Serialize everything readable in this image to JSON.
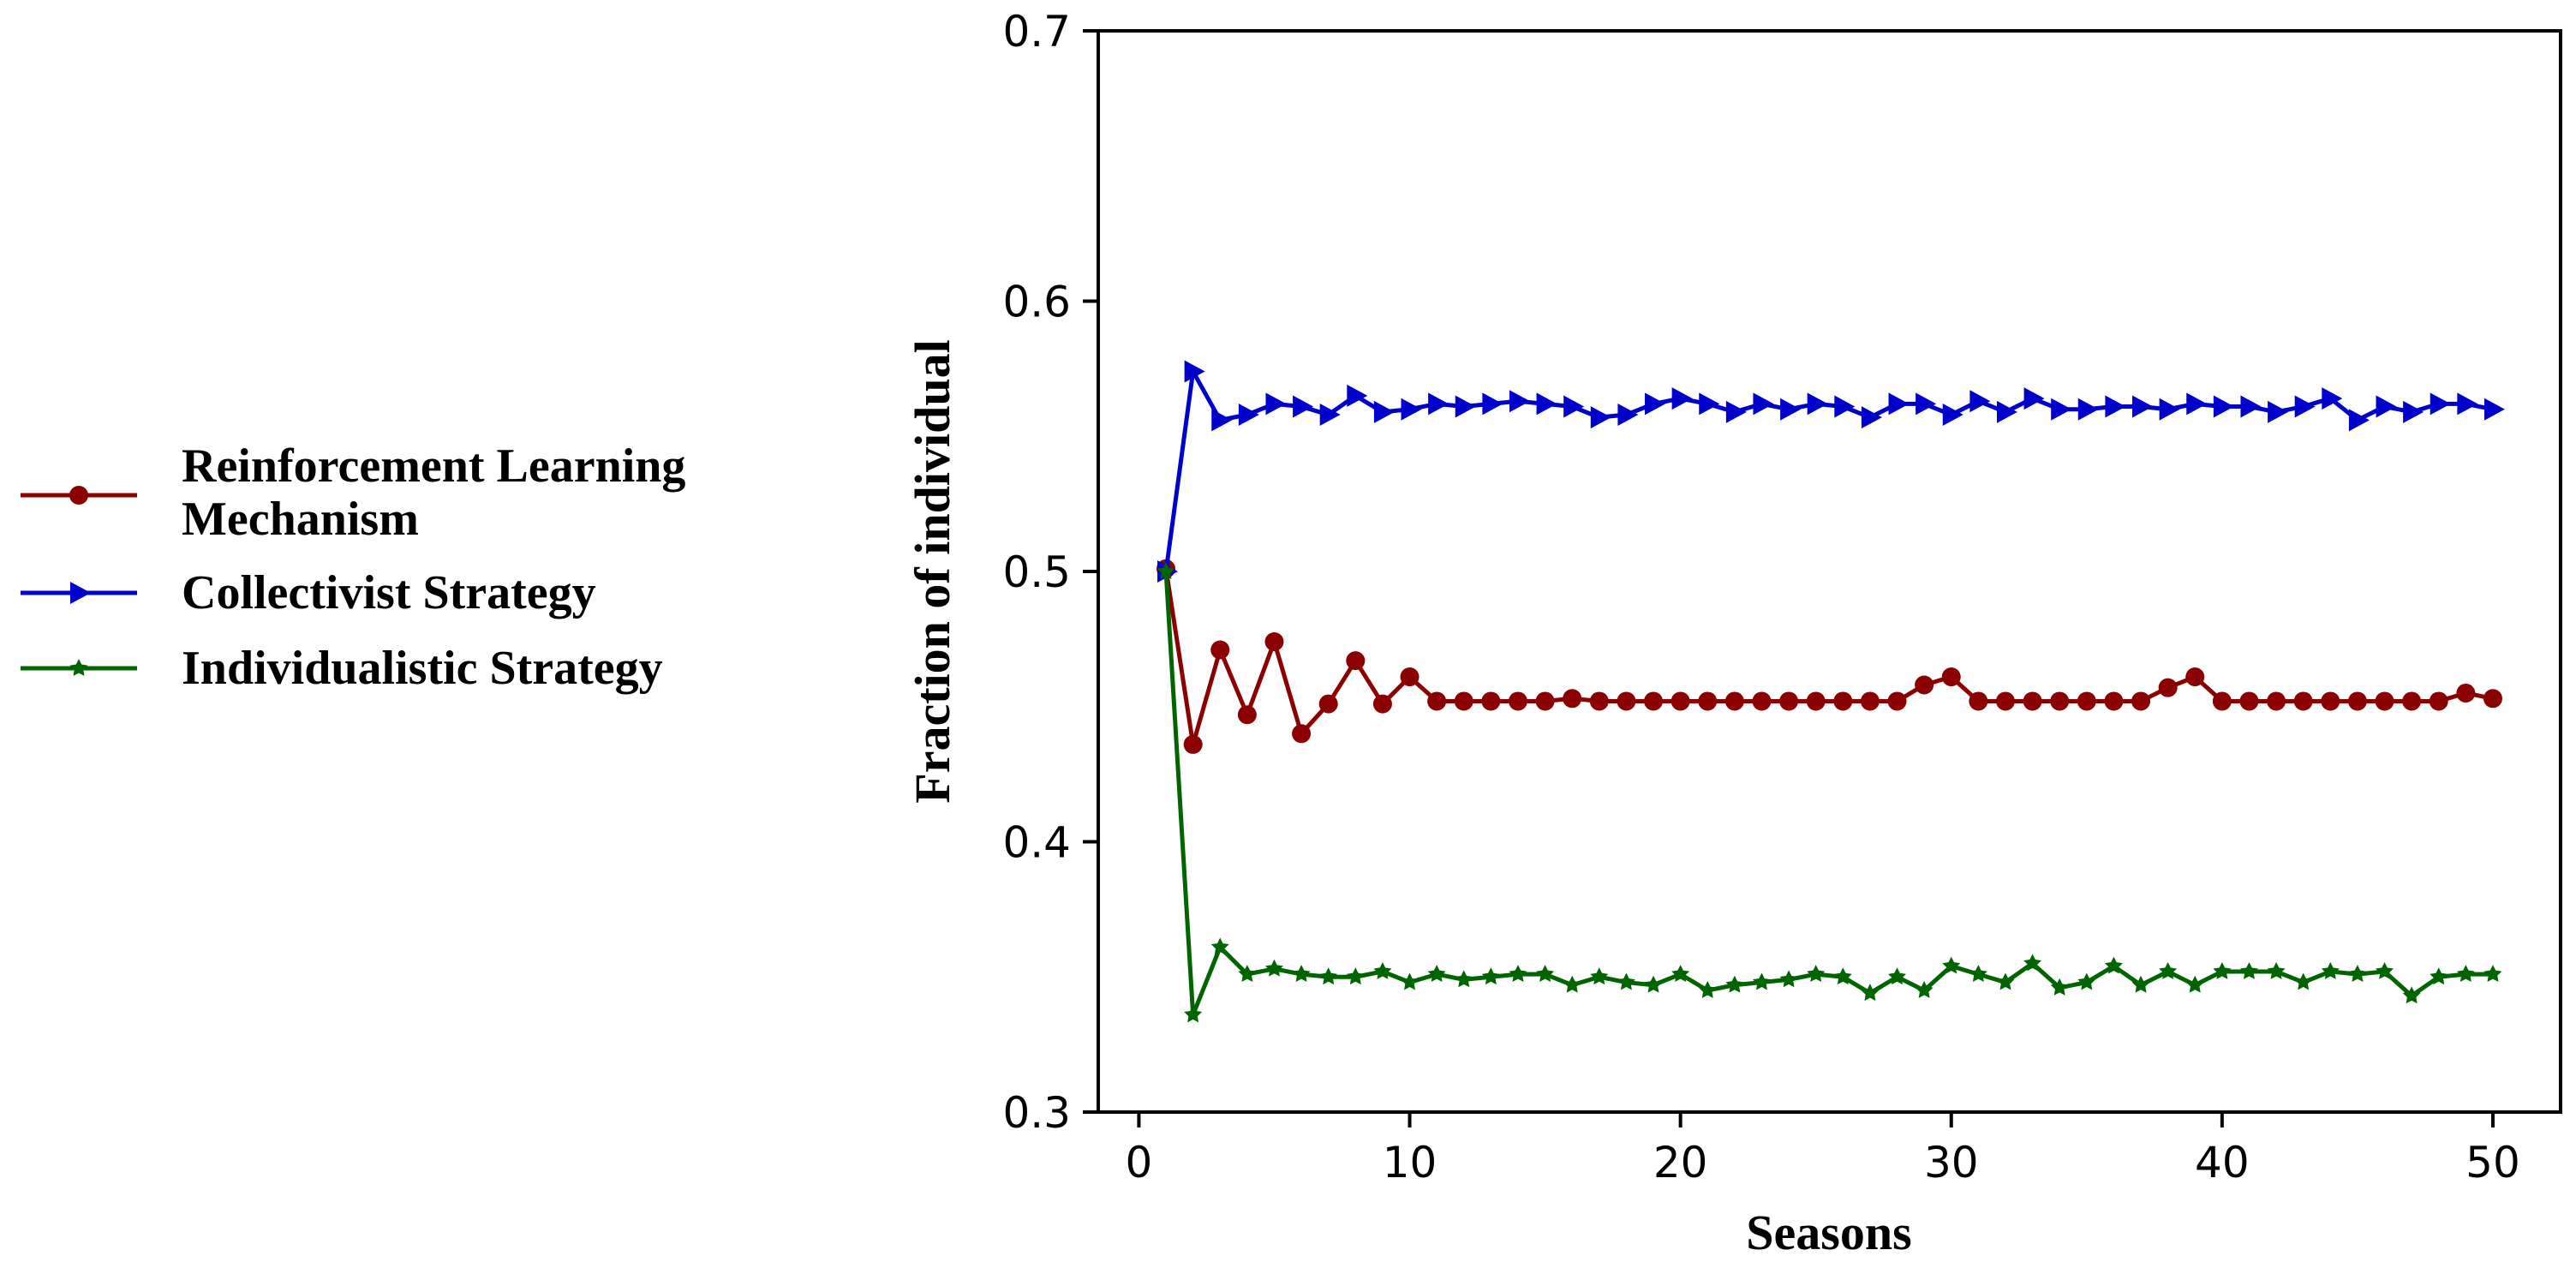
{
  "chart_data": {
    "type": "line",
    "title": "",
    "xlabel": "Seasons",
    "ylabel": "Fraction of individual",
    "xlim": [
      -1.5,
      52.5
    ],
    "ylim": [
      0.3,
      0.7
    ],
    "xticks": [
      0,
      10,
      20,
      30,
      40,
      50
    ],
    "yticks": [
      0.3,
      0.4,
      0.5,
      0.6,
      0.7
    ],
    "xtick_labels": [
      "0",
      "10",
      "20",
      "30",
      "40",
      "50"
    ],
    "ytick_labels": [
      "0.3",
      "0.4",
      "0.5",
      "0.6",
      "0.7"
    ],
    "grid": false,
    "legend_position": "left-outside",
    "x": [
      1,
      2,
      3,
      4,
      5,
      6,
      7,
      8,
      9,
      10,
      11,
      12,
      13,
      14,
      15,
      16,
      17,
      18,
      19,
      20,
      21,
      22,
      23,
      24,
      25,
      26,
      27,
      28,
      29,
      30,
      31,
      32,
      33,
      34,
      35,
      36,
      37,
      38,
      39,
      40,
      41,
      42,
      43,
      44,
      45,
      46,
      47,
      48,
      49,
      50
    ],
    "series": [
      {
        "name": "Reinforcement Learning Mechanism",
        "legend_lines": [
          "Reinforcement Learning",
          "Mechanism"
        ],
        "color": "#8b0000",
        "marker": "circle",
        "values": [
          0.501,
          0.436,
          0.471,
          0.447,
          0.474,
          0.44,
          0.451,
          0.467,
          0.451,
          0.461,
          0.452,
          0.452,
          0.452,
          0.452,
          0.452,
          0.453,
          0.452,
          0.452,
          0.452,
          0.452,
          0.452,
          0.452,
          0.452,
          0.452,
          0.452,
          0.452,
          0.452,
          0.452,
          0.458,
          0.461,
          0.452,
          0.452,
          0.452,
          0.452,
          0.452,
          0.452,
          0.452,
          0.457,
          0.461,
          0.452,
          0.452,
          0.452,
          0.452,
          0.452,
          0.452,
          0.452,
          0.452,
          0.452,
          0.455,
          0.453
        ]
      },
      {
        "name": "Collectivist Strategy",
        "legend_lines": [
          "Collectivist Strategy"
        ],
        "color": "#0000cc",
        "marker": "triangle-right",
        "values": [
          0.5,
          0.574,
          0.556,
          0.558,
          0.562,
          0.561,
          0.558,
          0.565,
          0.559,
          0.56,
          0.562,
          0.561,
          0.562,
          0.563,
          0.562,
          0.561,
          0.557,
          0.558,
          0.562,
          0.564,
          0.562,
          0.559,
          0.562,
          0.56,
          0.562,
          0.561,
          0.557,
          0.562,
          0.562,
          0.558,
          0.563,
          0.559,
          0.564,
          0.56,
          0.56,
          0.561,
          0.561,
          0.56,
          0.562,
          0.561,
          0.561,
          0.559,
          0.561,
          0.564,
          0.556,
          0.561,
          0.559,
          0.562,
          0.562,
          0.56
        ]
      },
      {
        "name": "Individualistic Strategy",
        "legend_lines": [
          "Individualistic Strategy"
        ],
        "color": "#006400",
        "marker": "star",
        "values": [
          0.5,
          0.336,
          0.361,
          0.351,
          0.353,
          0.351,
          0.35,
          0.35,
          0.352,
          0.348,
          0.351,
          0.349,
          0.35,
          0.351,
          0.351,
          0.347,
          0.35,
          0.348,
          0.347,
          0.351,
          0.345,
          0.347,
          0.348,
          0.349,
          0.351,
          0.35,
          0.344,
          0.35,
          0.345,
          0.354,
          0.351,
          0.348,
          0.355,
          0.346,
          0.348,
          0.354,
          0.347,
          0.352,
          0.347,
          0.352,
          0.352,
          0.352,
          0.348,
          0.352,
          0.351,
          0.352,
          0.343,
          0.35,
          0.351,
          0.351
        ]
      }
    ]
  }
}
